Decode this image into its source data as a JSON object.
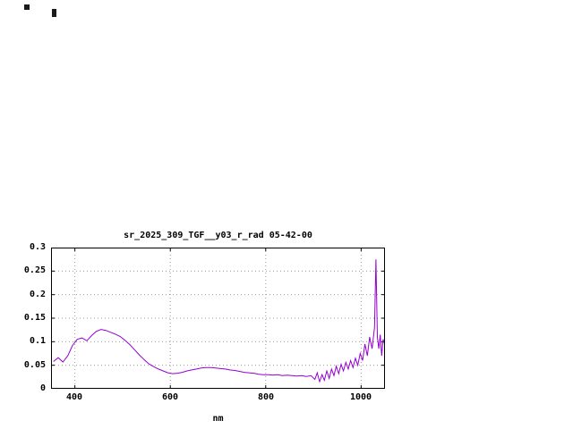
{
  "artifacts": {
    "note": "small dark marks top-left of screen"
  },
  "chart_data": {
    "type": "line",
    "title": "sr_2025_309_TGF__y03_r_rad 05-42-00",
    "xlabel": "nm",
    "ylabel": "",
    "xlim": [
      350,
      1050
    ],
    "ylim": [
      0,
      0.3
    ],
    "grid": true,
    "legend": "none",
    "line_color": "#9400d3",
    "grid_color": "#9a9a9a",
    "axis_color": "#000000",
    "background_color": "#ffffff",
    "x_ticks": [
      400,
      600,
      800,
      1000
    ],
    "y_ticks": [
      0,
      0.05,
      0.1,
      0.15,
      0.2,
      0.25,
      0.3
    ],
    "x_tick_labels": [
      "400",
      "600",
      "800",
      "1000"
    ],
    "y_tick_labels_top_to_bottom": [
      "0.3",
      "0.25",
      "0.2",
      "0.15",
      "0.1",
      "0.05",
      "0"
    ],
    "series": [
      {
        "name": "sr_2025_309_TGF__y03_r_rad",
        "x": [
          355,
          365,
          375,
          385,
          395,
          405,
          415,
          425,
          435,
          445,
          455,
          465,
          475,
          485,
          495,
          505,
          515,
          525,
          535,
          545,
          555,
          565,
          575,
          585,
          595,
          605,
          615,
          625,
          635,
          645,
          655,
          665,
          675,
          685,
          695,
          705,
          715,
          725,
          735,
          745,
          755,
          765,
          775,
          785,
          795,
          805,
          815,
          825,
          835,
          845,
          855,
          865,
          875,
          885,
          895,
          903,
          908,
          913,
          918,
          923,
          928,
          933,
          938,
          943,
          948,
          953,
          958,
          963,
          968,
          973,
          978,
          983,
          988,
          993,
          998,
          1003,
          1008,
          1013,
          1018,
          1023,
          1028,
          1031,
          1034,
          1037,
          1040,
          1043,
          1046,
          1049
        ],
        "y": [
          0.058,
          0.066,
          0.057,
          0.07,
          0.092,
          0.105,
          0.108,
          0.102,
          0.113,
          0.122,
          0.126,
          0.124,
          0.12,
          0.116,
          0.111,
          0.103,
          0.094,
          0.083,
          0.072,
          0.062,
          0.053,
          0.047,
          0.042,
          0.038,
          0.034,
          0.032,
          0.033,
          0.035,
          0.038,
          0.04,
          0.042,
          0.044,
          0.045,
          0.045,
          0.044,
          0.043,
          0.042,
          0.04,
          0.039,
          0.037,
          0.035,
          0.034,
          0.033,
          0.031,
          0.03,
          0.03,
          0.029,
          0.03,
          0.028,
          0.029,
          0.028,
          0.027,
          0.028,
          0.026,
          0.028,
          0.02,
          0.034,
          0.015,
          0.03,
          0.018,
          0.038,
          0.022,
          0.042,
          0.028,
          0.048,
          0.032,
          0.052,
          0.038,
          0.056,
          0.042,
          0.06,
          0.045,
          0.065,
          0.05,
          0.075,
          0.06,
          0.095,
          0.07,
          0.11,
          0.085,
          0.13,
          0.275,
          0.11,
          0.085,
          0.115,
          0.07,
          0.105,
          0.095
        ]
      }
    ]
  }
}
